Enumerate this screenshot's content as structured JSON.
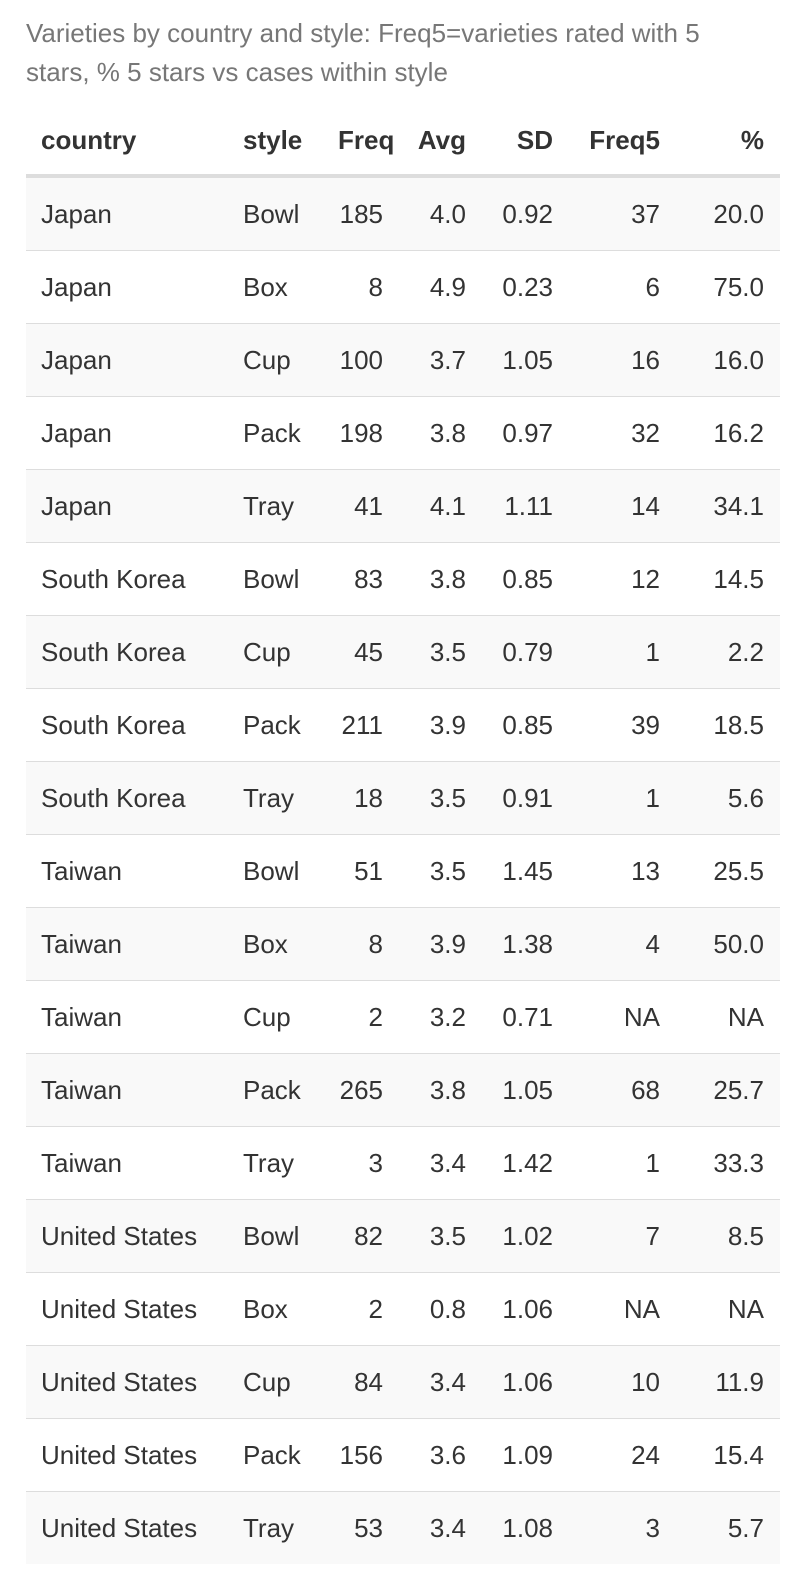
{
  "caption": "Varieties by country and style: Freq5=varieties rated with 5 stars, % 5 stars vs cases within style",
  "columns": [
    "country",
    "style",
    "Freq",
    "Avg",
    "SD",
    "Freq5",
    "%"
  ],
  "rows": [
    [
      "Japan",
      "Bowl",
      "185",
      "4.0",
      "0.92",
      "37",
      "20.0"
    ],
    [
      "Japan",
      "Box",
      "8",
      "4.9",
      "0.23",
      "6",
      "75.0"
    ],
    [
      "Japan",
      "Cup",
      "100",
      "3.7",
      "1.05",
      "16",
      "16.0"
    ],
    [
      "Japan",
      "Pack",
      "198",
      "3.8",
      "0.97",
      "32",
      "16.2"
    ],
    [
      "Japan",
      "Tray",
      "41",
      "4.1",
      "1.11",
      "14",
      "34.1"
    ],
    [
      "South Korea",
      "Bowl",
      "83",
      "3.8",
      "0.85",
      "12",
      "14.5"
    ],
    [
      "South Korea",
      "Cup",
      "45",
      "3.5",
      "0.79",
      "1",
      "2.2"
    ],
    [
      "South Korea",
      "Pack",
      "211",
      "3.9",
      "0.85",
      "39",
      "18.5"
    ],
    [
      "South Korea",
      "Tray",
      "18",
      "3.5",
      "0.91",
      "1",
      "5.6"
    ],
    [
      "Taiwan",
      "Bowl",
      "51",
      "3.5",
      "1.45",
      "13",
      "25.5"
    ],
    [
      "Taiwan",
      "Box",
      "8",
      "3.9",
      "1.38",
      "4",
      "50.0"
    ],
    [
      "Taiwan",
      "Cup",
      "2",
      "3.2",
      "0.71",
      "NA",
      "NA"
    ],
    [
      "Taiwan",
      "Pack",
      "265",
      "3.8",
      "1.05",
      "68",
      "25.7"
    ],
    [
      "Taiwan",
      "Tray",
      "3",
      "3.4",
      "1.42",
      "1",
      "33.3"
    ],
    [
      "United States",
      "Bowl",
      "82",
      "3.5",
      "1.02",
      "7",
      "8.5"
    ],
    [
      "United States",
      "Box",
      "2",
      "0.8",
      "1.06",
      "NA",
      "NA"
    ],
    [
      "United States",
      "Cup",
      "84",
      "3.4",
      "1.06",
      "10",
      "11.9"
    ],
    [
      "United States",
      "Pack",
      "156",
      "3.6",
      "1.09",
      "24",
      "15.4"
    ],
    [
      "United States",
      "Tray",
      "53",
      "3.4",
      "1.08",
      "3",
      "5.7"
    ]
  ]
}
